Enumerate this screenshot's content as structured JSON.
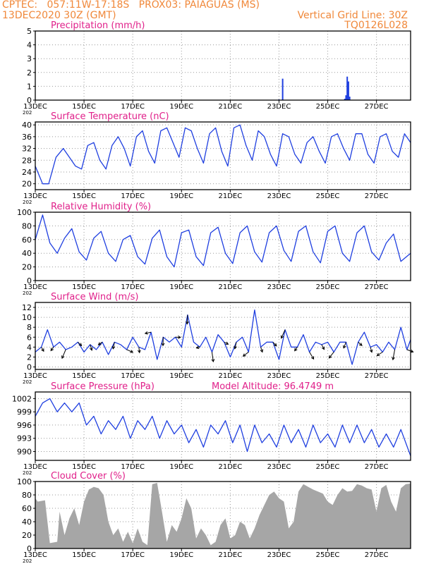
{
  "header": {
    "left_line1": "CPTEC:   057:11W-17:18S   PROX03: PAIAGUAS (MS)",
    "left_line2": "13DEC2020 30Z (GMT)",
    "right_line1": "Vertical Grid Line: 30Z",
    "right_line2": "TQ0126L028"
  },
  "colors": {
    "title": "#e0208a",
    "header": "#f0883a",
    "line": "#1f3fe0",
    "cloud_fill": "#a6a6a6",
    "grid": "#9a9a9a",
    "wind_arrow": "#000000"
  },
  "x_axis": {
    "tick_labels": [
      "13DEC",
      "15DEC",
      "17DEC",
      "19DEC",
      "21DEC",
      "23DEC",
      "25DEC",
      "27DEC"
    ],
    "year_stub": "202"
  },
  "chart_data": [
    {
      "id": "precip",
      "type": "bar",
      "title": "Precipitation (mm/h)",
      "ylim": [
        0,
        5
      ],
      "yticks": [
        0,
        1,
        2,
        3,
        4,
        5
      ],
      "xlim": [
        0,
        15.4
      ],
      "grid": true,
      "bars": [
        [
          10.0,
          0.05
        ],
        [
          10.15,
          1.55
        ],
        [
          12.7,
          0.1
        ],
        [
          12.75,
          0.35
        ],
        [
          12.8,
          1.7
        ],
        [
          12.85,
          1.35
        ],
        [
          12.9,
          0.25
        ]
      ]
    },
    {
      "id": "temp",
      "type": "line",
      "title": "Surface Temperature (nC)",
      "ylim": [
        18,
        41
      ],
      "yticks": [
        20,
        24,
        28,
        32,
        36,
        40
      ],
      "xlim": [
        0,
        15.4
      ],
      "grid": true,
      "x": [
        0,
        0.3,
        0.55,
        0.85,
        1.15,
        1.4,
        1.65,
        1.9,
        2.15,
        2.4,
        2.65,
        2.9,
        3.15,
        3.4,
        3.65,
        3.9,
        4.15,
        4.4,
        4.65,
        4.9,
        5.15,
        5.4,
        5.65,
        5.9,
        6.15,
        6.4,
        6.65,
        6.9,
        7.15,
        7.4,
        7.65,
        7.9,
        8.15,
        8.4,
        8.65,
        8.9,
        9.15,
        9.4,
        9.65,
        9.9,
        10.15,
        10.4,
        10.65,
        10.9,
        11.15,
        11.4,
        11.65,
        11.9,
        12.15,
        12.4,
        12.65,
        12.9,
        13.15,
        13.4,
        13.65,
        13.9,
        14.15,
        14.4,
        14.65,
        14.9,
        15.15,
        15.4
      ],
      "y": [
        26,
        20,
        20,
        29,
        32,
        29,
        26,
        25,
        33,
        34,
        28,
        25,
        33,
        36,
        32,
        26,
        36,
        38,
        31,
        27,
        38,
        39,
        34,
        29,
        39,
        38,
        32,
        27,
        37,
        39,
        31,
        26,
        39,
        40,
        33,
        28,
        38,
        36,
        30,
        26,
        37,
        36,
        30,
        27,
        34,
        36,
        31,
        27,
        36,
        37,
        32,
        28,
        37,
        37,
        30,
        27,
        36,
        37,
        31,
        29,
        37,
        34
      ]
    },
    {
      "id": "rh",
      "type": "line",
      "title": "Relative Humidity (%)",
      "ylim": [
        0,
        100
      ],
      "yticks": [
        0,
        20,
        40,
        60,
        80,
        100
      ],
      "xlim": [
        0,
        15.4
      ],
      "grid": true,
      "x": [
        0,
        0.3,
        0.6,
        0.9,
        1.2,
        1.5,
        1.8,
        2.1,
        2.4,
        2.7,
        3.0,
        3.3,
        3.6,
        3.9,
        4.2,
        4.5,
        4.8,
        5.1,
        5.4,
        5.7,
        6.0,
        6.3,
        6.6,
        6.9,
        7.2,
        7.5,
        7.8,
        8.1,
        8.4,
        8.7,
        9.0,
        9.3,
        9.6,
        9.9,
        10.2,
        10.5,
        10.8,
        11.1,
        11.4,
        11.7,
        12.0,
        12.3,
        12.6,
        12.9,
        13.2,
        13.5,
        13.8,
        14.1,
        14.4,
        14.7,
        15.0,
        15.4
      ],
      "y": [
        60,
        96,
        55,
        40,
        62,
        76,
        42,
        30,
        62,
        72,
        40,
        28,
        60,
        66,
        35,
        24,
        62,
        74,
        35,
        20,
        70,
        74,
        35,
        22,
        70,
        78,
        40,
        25,
        70,
        80,
        42,
        27,
        70,
        80,
        44,
        28,
        72,
        80,
        42,
        26,
        72,
        80,
        40,
        28,
        70,
        80,
        42,
        30,
        55,
        68,
        28,
        40
      ]
    },
    {
      "id": "wind",
      "type": "line",
      "title": "Surface Wind (m/s)",
      "ylim": [
        -0.5,
        13
      ],
      "yticks": [
        0,
        2,
        4,
        6,
        8,
        10,
        12
      ],
      "xlim": [
        0,
        15.4
      ],
      "grid": true,
      "x": [
        0,
        0.25,
        0.5,
        0.75,
        1.0,
        1.25,
        1.5,
        1.75,
        2.0,
        2.25,
        2.5,
        2.75,
        3.0,
        3.25,
        3.5,
        3.75,
        4.0,
        4.25,
        4.5,
        4.75,
        5.0,
        5.25,
        5.5,
        5.75,
        6.0,
        6.25,
        6.5,
        6.75,
        7.0,
        7.25,
        7.5,
        7.75,
        8.0,
        8.25,
        8.5,
        8.75,
        9.0,
        9.25,
        9.5,
        9.75,
        10.0,
        10.25,
        10.5,
        10.75,
        11.0,
        11.25,
        11.5,
        11.75,
        12.0,
        12.25,
        12.5,
        12.75,
        13.0,
        13.25,
        13.5,
        13.75,
        14.0,
        14.25,
        14.5,
        14.75,
        15.0,
        15.25,
        15.4
      ],
      "y": [
        3,
        4,
        7.5,
        4,
        5,
        3.5,
        4,
        5,
        3,
        4.5,
        3.5,
        5,
        2.5,
        5,
        4.5,
        3.5,
        6,
        4,
        3.5,
        7,
        1.5,
        6,
        5,
        6,
        4,
        10.5,
        5,
        4,
        6,
        3,
        6.5,
        5,
        2,
        5,
        6,
        3,
        11.5,
        4,
        5,
        5,
        1.5,
        7.5,
        4,
        4,
        6.5,
        3,
        5,
        4.5,
        5,
        3,
        5,
        5,
        0.5,
        5,
        7,
        4,
        4.5,
        3,
        5,
        3.5,
        8,
        3.5,
        5.5
      ]
    },
    {
      "id": "pressure",
      "type": "line",
      "title": "Surface Pressure (hPa)",
      "annotation": "Model Altitude: 96.4749 m",
      "ylim": [
        988,
        1003.5
      ],
      "yticks": [
        990,
        993,
        996,
        999,
        1002
      ],
      "xlim": [
        0,
        15.4
      ],
      "grid": true,
      "x": [
        0,
        0.3,
        0.6,
        0.9,
        1.2,
        1.5,
        1.8,
        2.1,
        2.4,
        2.7,
        3.0,
        3.3,
        3.6,
        3.9,
        4.2,
        4.5,
        4.8,
        5.1,
        5.4,
        5.7,
        6.0,
        6.3,
        6.6,
        6.9,
        7.2,
        7.5,
        7.8,
        8.1,
        8.4,
        8.7,
        9.0,
        9.3,
        9.6,
        9.9,
        10.2,
        10.5,
        10.8,
        11.1,
        11.4,
        11.7,
        12.0,
        12.3,
        12.6,
        12.9,
        13.2,
        13.5,
        13.8,
        14.1,
        14.4,
        14.7,
        15.0,
        15.4
      ],
      "y": [
        998,
        1001,
        1002,
        999,
        1001,
        999,
        1001,
        996,
        998,
        994,
        997,
        995,
        998,
        993,
        997,
        995,
        998,
        993,
        997,
        994,
        996,
        992,
        995,
        991,
        996,
        994,
        997,
        992,
        996,
        990,
        996,
        992,
        994,
        991,
        996,
        992,
        995,
        991,
        996,
        992,
        994,
        991,
        996,
        992,
        996,
        992,
        995,
        991,
        994,
        991,
        995,
        989
      ]
    },
    {
      "id": "cloud",
      "type": "area",
      "title": "Cloud Cover (%)",
      "ylim": [
        0,
        100
      ],
      "yticks": [
        0,
        20,
        40,
        60,
        80,
        100
      ],
      "xlim": [
        0,
        15.4
      ],
      "grid": true,
      "x": [
        0,
        0.1,
        0.4,
        0.6,
        0.9,
        1.0,
        1.2,
        1.4,
        1.6,
        1.8,
        2.0,
        2.2,
        2.4,
        2.6,
        2.8,
        3.0,
        3.2,
        3.4,
        3.6,
        3.8,
        4.0,
        4.2,
        4.4,
        4.6,
        4.8,
        5.0,
        5.2,
        5.4,
        5.6,
        5.8,
        6.0,
        6.2,
        6.4,
        6.6,
        6.8,
        7.0,
        7.2,
        7.4,
        7.6,
        7.8,
        8.0,
        8.2,
        8.4,
        8.6,
        8.8,
        9.0,
        9.2,
        9.4,
        9.6,
        9.8,
        10.0,
        10.2,
        10.4,
        10.6,
        10.8,
        11.0,
        11.2,
        11.4,
        11.6,
        11.8,
        12.0,
        12.2,
        12.4,
        12.6,
        12.8,
        13.0,
        13.2,
        13.4,
        13.6,
        13.8,
        14.0,
        14.2,
        14.4,
        14.6,
        14.8,
        15.0,
        15.2,
        15.4
      ],
      "y": [
        75,
        70,
        72,
        8,
        10,
        55,
        20,
        45,
        60,
        35,
        70,
        88,
        92,
        90,
        80,
        40,
        20,
        30,
        10,
        25,
        8,
        30,
        10,
        5,
        96,
        98,
        55,
        10,
        35,
        25,
        45,
        75,
        60,
        15,
        30,
        20,
        5,
        10,
        35,
        45,
        15,
        20,
        40,
        35,
        15,
        30,
        50,
        65,
        80,
        85,
        75,
        70,
        30,
        40,
        85,
        96,
        92,
        88,
        85,
        82,
        70,
        65,
        80,
        90,
        85,
        86,
        96,
        94,
        90,
        88,
        55,
        90,
        95,
        70,
        55,
        90,
        96,
        97
      ]
    }
  ]
}
